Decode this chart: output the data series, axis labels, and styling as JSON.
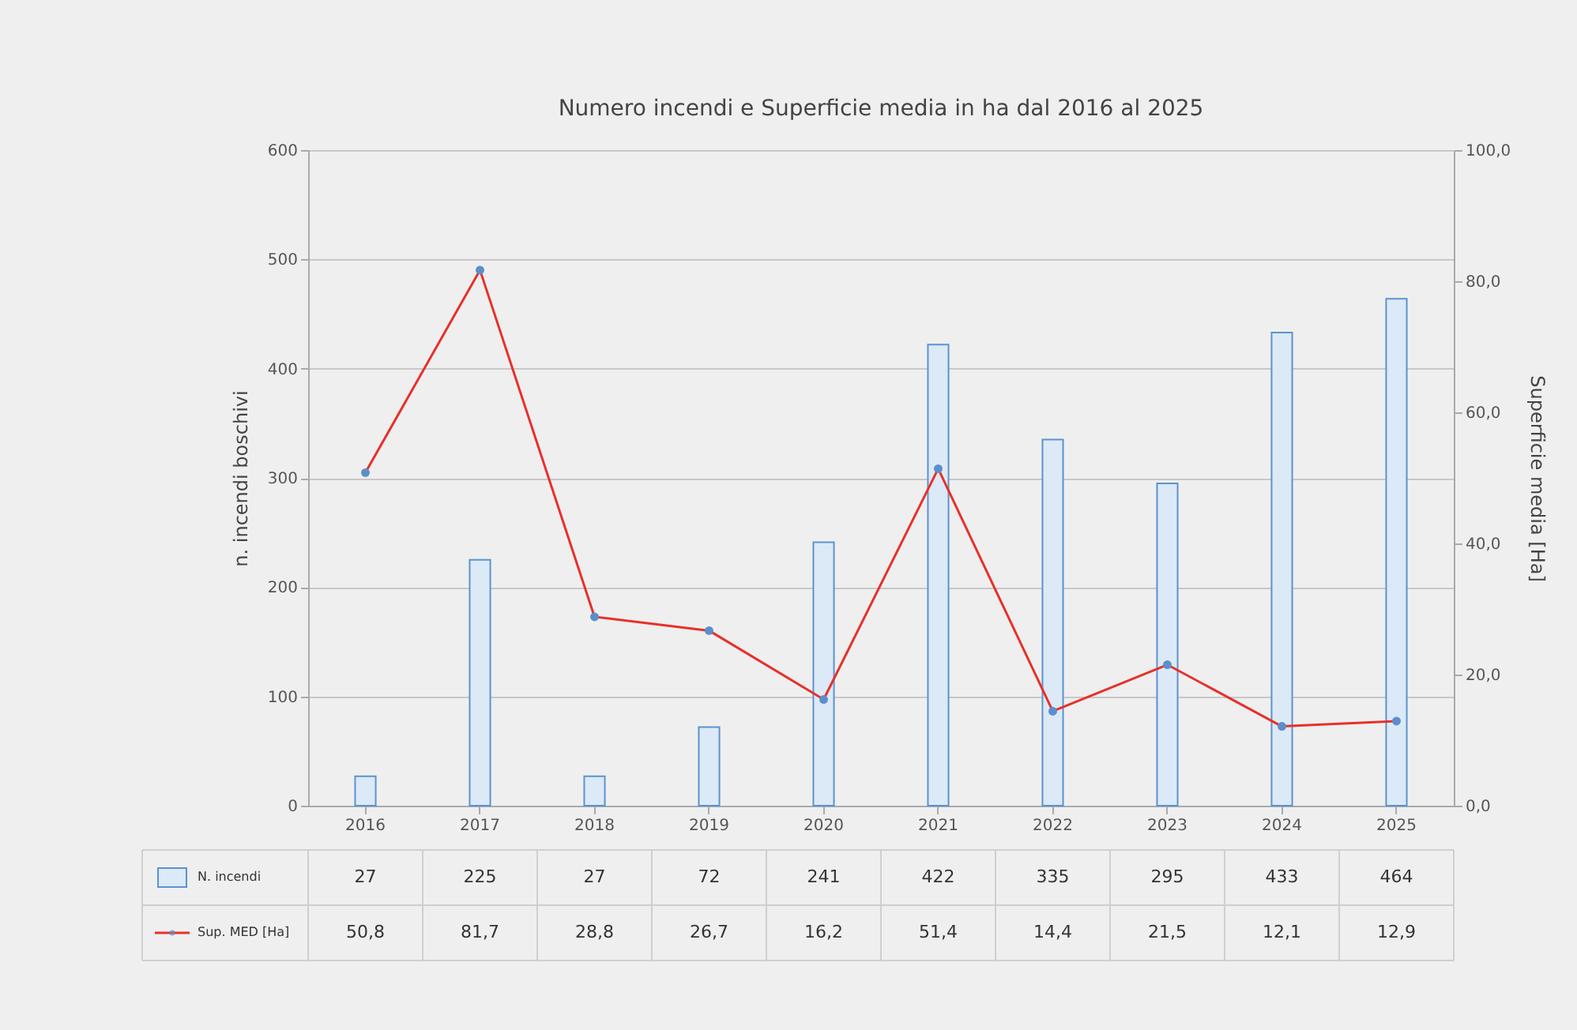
{
  "chart_data": {
    "type": "bar",
    "title": "Numero incendi e Superficie media in ha dal 2016 al 2025",
    "ylabel": "n. incendi boschivi",
    "y2label": "Superficie media [Ha]",
    "categories": [
      "2016",
      "2017",
      "2018",
      "2019",
      "2020",
      "2021",
      "2022",
      "2023",
      "2024",
      "2025"
    ],
    "series": [
      {
        "name": "N. incendi",
        "color": "#dce9f7",
        "values": [
          27,
          225,
          27,
          72,
          241,
          422,
          335,
          295,
          433,
          464
        ],
        "value_labels": [
          "27",
          "225",
          "27",
          "72",
          "241",
          "422",
          "335",
          "295",
          "433",
          "464"
        ]
      },
      {
        "name": "Sup. MED [Ha]",
        "type": "line",
        "axis": "y2",
        "color": "#e8302a",
        "marker": "circle",
        "values": [
          50.8,
          81.7,
          28.8,
          26.7,
          16.2,
          51.4,
          14.4,
          21.5,
          12.1,
          12.9
        ],
        "value_labels": [
          "50,8",
          "81,7",
          "28,8",
          "26,7",
          "16,2",
          "51,4",
          "14,4",
          "21,5",
          "12,1",
          "12,9"
        ]
      }
    ],
    "ylim": [
      0,
      600
    ],
    "yticks": [
      0,
      100,
      200,
      300,
      400,
      500,
      600
    ],
    "y2lim": [
      0,
      100
    ],
    "y2ticks": [
      {
        "value": 0,
        "label": "0,0"
      },
      {
        "value": 20,
        "label": "20,0"
      },
      {
        "value": 40,
        "label": "40,0"
      },
      {
        "value": 60,
        "label": "60,0"
      },
      {
        "value": 80,
        "label": "80,0"
      },
      {
        "value": 100,
        "label": "100,0"
      }
    ],
    "grid": "y",
    "legend": "bottom"
  }
}
